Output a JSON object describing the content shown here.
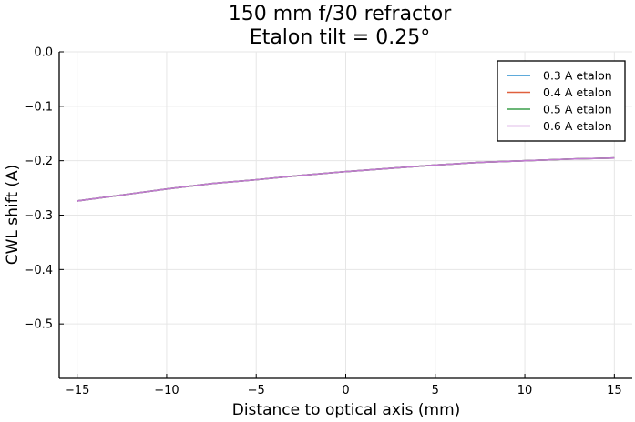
{
  "chart_data": {
    "type": "line",
    "title": [
      "150 mm f/30 refractor",
      "Etalon tilt = 0.25°"
    ],
    "xlabel": "Distance to optical axis (mm)",
    "ylabel": "CWL shift (A)",
    "xlim": [
      -16,
      16
    ],
    "ylim": [
      -0.6,
      0.0
    ],
    "xticks": [
      -15,
      -10,
      -5,
      0,
      5,
      10,
      15
    ],
    "xtick_labels": [
      "−15",
      "−10",
      "−5",
      "0",
      "5",
      "10",
      "15"
    ],
    "yticks": [
      0.0,
      -0.1,
      -0.2,
      -0.3,
      -0.4,
      -0.5
    ],
    "ytick_labels": [
      "0.0",
      "−0.1",
      "−0.2",
      "−0.3",
      "−0.4",
      "−0.5"
    ],
    "grid": true,
    "legend_position": "top-right",
    "x": [
      -15,
      -12.5,
      -10,
      -7.5,
      -5,
      -2.5,
      0,
      2.5,
      5,
      7.5,
      10,
      12.5,
      15
    ],
    "series": [
      {
        "name": "0.3 A etalon",
        "color": "#2a8fcf",
        "values": [
          -0.274,
          -0.263,
          -0.252,
          -0.242,
          -0.235,
          -0.227,
          -0.22,
          -0.214,
          -0.208,
          -0.203,
          -0.2,
          -0.197,
          -0.195
        ]
      },
      {
        "name": "0.4 A etalon",
        "color": "#e0603d",
        "values": [
          -0.274,
          -0.263,
          -0.252,
          -0.242,
          -0.235,
          -0.227,
          -0.22,
          -0.214,
          -0.208,
          -0.203,
          -0.2,
          -0.197,
          -0.195
        ]
      },
      {
        "name": "0.5 A etalon",
        "color": "#3a9e4a",
        "values": [
          -0.274,
          -0.263,
          -0.252,
          -0.242,
          -0.235,
          -0.227,
          -0.22,
          -0.214,
          -0.208,
          -0.203,
          -0.2,
          -0.197,
          -0.195
        ]
      },
      {
        "name": "0.6 A etalon",
        "color": "#c27bd1",
        "values": [
          -0.274,
          -0.263,
          -0.252,
          -0.242,
          -0.235,
          -0.227,
          -0.22,
          -0.214,
          -0.208,
          -0.203,
          -0.2,
          -0.197,
          -0.195
        ]
      }
    ]
  }
}
